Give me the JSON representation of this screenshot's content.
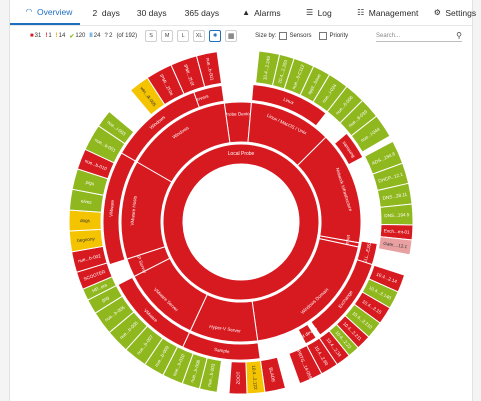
{
  "tabs": [
    {
      "label": "Overview",
      "icon": "gauge-icon",
      "active": true
    },
    {
      "label": "2  days",
      "icon": "",
      "active": false
    },
    {
      "label": "30 days",
      "icon": "",
      "active": false
    },
    {
      "label": "365 days",
      "icon": "",
      "active": false
    },
    {
      "label": "Alarms",
      "icon": "warning-icon",
      "active": false
    },
    {
      "label": "Log",
      "icon": "list-icon",
      "active": false
    },
    {
      "label": "Management",
      "icon": "sliders-icon",
      "active": false
    },
    {
      "label": "Settings",
      "icon": "gear-icon",
      "active": false
    }
  ],
  "toolbar": {
    "counts": [
      {
        "glyph": "■",
        "value": "31",
        "color": "#d71920"
      },
      {
        "glyph": "!",
        "value": "1",
        "color": "#d71920"
      },
      {
        "glyph": "!",
        "value": "14",
        "color": "#e6a800"
      },
      {
        "glyph": "✔",
        "value": "120",
        "color": "#8fb71e"
      },
      {
        "glyph": "II",
        "value": "24",
        "color": "#3b8fd6"
      },
      {
        "glyph": "?",
        "value": "2",
        "color": "#777777"
      }
    ],
    "total": "(of 192)",
    "sizes": [
      "S",
      "M",
      "L",
      "XL"
    ],
    "size_by_label": "Size by:",
    "sensors_label": "Sensors",
    "priority_label": "Priority",
    "search_placeholder": "Search..."
  },
  "colors": {
    "down": "#d71920",
    "up": "#8fb71e",
    "warning": "#f5c400",
    "paused": "#e8a0a0",
    "accent": "#1f6fbf"
  },
  "sunburst": {
    "level1": [
      {
        "label": "Local Probe",
        "color": "down",
        "a0": -61,
        "a1": 299
      }
    ],
    "level2": [
      {
        "label": "Probe Device",
        "color": "down",
        "a0": -8,
        "a1": 5
      },
      {
        "label": "Linux / MacOS / Unix",
        "color": "down",
        "a0": 5,
        "a1": 45
      },
      {
        "label": "Network Infrastructure",
        "color": "down",
        "a0": 45,
        "a1": 100
      },
      {
        "label": "Internet",
        "color": "down",
        "a0": 100,
        "a1": 102
      },
      {
        "label": "Windows Domain",
        "color": "down",
        "a0": 102,
        "a1": 172
      },
      {
        "label": "Hyper-V Server",
        "color": "down",
        "a0": 172,
        "a1": 205
      },
      {
        "label": "VMware Server",
        "color": "down",
        "a0": 205,
        "a1": 243
      },
      {
        "label": "HP Server",
        "color": "down",
        "a0": 243,
        "a1": 252
      },
      {
        "label": "VMware Hosts",
        "color": "down",
        "a0": 252,
        "a1": 300
      },
      {
        "label": "Windows",
        "color": "down",
        "a0": 300,
        "a1": 352
      }
    ],
    "level3": [
      {
        "label": "Servers",
        "color": "down",
        "a0": -28,
        "a1": -8
      },
      {
        "label": "Linux",
        "color": "down",
        "a0": 5,
        "a1": 38
      },
      {
        "label": "samsung",
        "color": "down",
        "a0": 50,
        "a1": 62
      },
      {
        "label": "DELL...E352C",
        "color": "down",
        "a0": 99,
        "a1": 108
      },
      {
        "label": "Exchange",
        "color": "down",
        "a0": 108,
        "a1": 145
      },
      {
        "label": "Test device",
        "color": "down",
        "a0": 147,
        "a1": 152
      },
      {
        "label": "Sample",
        "color": "down",
        "a0": 172,
        "a1": 205
      },
      {
        "label": "VMware",
        "color": "down",
        "a0": 205,
        "a1": 243
      },
      {
        "label": "VMware",
        "color": "down",
        "a0": 252,
        "a1": 300
      },
      {
        "label": "Windows",
        "color": "down",
        "a0": 300,
        "a1": 340
      }
    ],
    "level4": [
      {
        "label": "win...ik-005",
        "color": "warning",
        "a0": -40,
        "a1": -33
      },
      {
        "label": "IPMI...2f:0e",
        "color": "down",
        "a0": -33,
        "a1": -24
      },
      {
        "label": "IPMI...2f:0f",
        "color": "down",
        "a0": -24,
        "a1": -15
      },
      {
        "label": "nue...b-001",
        "color": "down",
        "a0": -15,
        "a1": -8
      },
      {
        "label": "10.4...2.249",
        "color": "up",
        "a0": 6,
        "a1": 13
      },
      {
        "label": "10.4...2.250",
        "color": "up",
        "a0": 13,
        "a1": 18
      },
      {
        "label": "nue...6-C112",
        "color": "up",
        "a0": 18,
        "a1": 25
      },
      {
        "label": "appl...bsue",
        "color": "up",
        "a0": 25,
        "a1": 31
      },
      {
        "label": "nue...i-024",
        "color": "up",
        "a0": 31,
        "a1": 38
      },
      {
        "label": "nue...6-006",
        "color": "up",
        "a0": 38,
        "a1": 45
      },
      {
        "label": "nue...6-039",
        "color": "up",
        "a0": 45,
        "a1": 52
      },
      {
        "label": "nue...l-044",
        "color": "up",
        "a0": 52,
        "a1": 60
      },
      {
        "label": "ADS...194.6",
        "color": "up",
        "a0": 62,
        "a1": 70
      },
      {
        "label": "DHCP...12.1",
        "color": "up",
        "a0": 70,
        "a1": 77
      },
      {
        "label": "DNS...28.11",
        "color": "up",
        "a0": 77,
        "a1": 84
      },
      {
        "label": "DNS...194.5",
        "color": "up",
        "a0": 84,
        "a1": 91
      },
      {
        "label": "Exch...mt-01",
        "color": "down",
        "a0": 91,
        "a1": 96
      },
      {
        "label": "Gate....12.1",
        "color": "paused",
        "a0": 96,
        "a1": 101
      },
      {
        "label": "10.4...2.14",
        "color": "down",
        "a0": 108,
        "a1": 114
      },
      {
        "label": "10.4...2.140",
        "color": "up",
        "a0": 114,
        "a1": 120
      },
      {
        "label": "10.4...2.15",
        "color": "down",
        "a0": 120,
        "a1": 126
      },
      {
        "label": "10.4...2.210",
        "color": "up",
        "a0": 126,
        "a1": 132
      },
      {
        "label": "10.4...2.211",
        "color": "down",
        "a0": 132,
        "a1": 137
      },
      {
        "label": "10.4...2.22",
        "color": "up",
        "a0": 137,
        "a1": 141
      },
      {
        "label": "10.4...2.34",
        "color": "down",
        "a0": 141,
        "a1": 146
      },
      {
        "label": "10.4...2.60",
        "color": "down",
        "a0": 146,
        "a1": 152
      },
      {
        "label": "PRTG...14-059",
        "color": "down",
        "a0": 152,
        "a1": 160
      },
      {
        "label": "BLADE",
        "color": "down",
        "a0": 165,
        "a1": 172
      },
      {
        "label": "10.4...2.122",
        "color": "warning",
        "a0": 172,
        "a1": 178
      },
      {
        "label": "ZOOT",
        "color": "down",
        "a0": 178,
        "a1": 184
      },
      {
        "label": "nue...b-003",
        "color": "up",
        "a0": 188,
        "a1": 194
      },
      {
        "label": "nue...b-008",
        "color": "up",
        "a0": 194,
        "a1": 200
      },
      {
        "label": "nue...b-010",
        "color": "up",
        "a0": 200,
        "a1": 207
      },
      {
        "label": "nue...b-009",
        "color": "up",
        "a0": 207,
        "a1": 214
      },
      {
        "label": "nue...b-007",
        "color": "up",
        "a0": 214,
        "a1": 222
      },
      {
        "label": "nue...b-005",
        "color": "up",
        "a0": 222,
        "a1": 230
      },
      {
        "label": "nue...b-006",
        "color": "up",
        "a0": 230,
        "a1": 238
      },
      {
        "label": "gsg",
        "color": "up",
        "a0": 238,
        "a1": 243
      },
      {
        "label": "HP...ers",
        "color": "up",
        "a0": 243,
        "a1": 247
      },
      {
        "label": "SCOOTER",
        "color": "down",
        "a0": 247,
        "a1": 253
      },
      {
        "label": "nue...b-002",
        "color": "down",
        "a0": 253,
        "a1": 260
      },
      {
        "label": "begoony",
        "color": "warning",
        "a0": 260,
        "a1": 267
      },
      {
        "label": "dogs",
        "color": "warning",
        "a0": 267,
        "a1": 274
      },
      {
        "label": "elves",
        "color": "up",
        "a0": 274,
        "a1": 281
      },
      {
        "label": "pigs",
        "color": "up",
        "a0": 281,
        "a1": 288
      },
      {
        "label": "nue...b-010",
        "color": "down",
        "a0": 288,
        "a1": 295
      },
      {
        "label": "nue...b-001",
        "color": "up",
        "a0": 295,
        "a1": 304
      },
      {
        "label": "nue...i-003",
        "color": "up",
        "a0": 304,
        "a1": 310
      }
    ]
  }
}
